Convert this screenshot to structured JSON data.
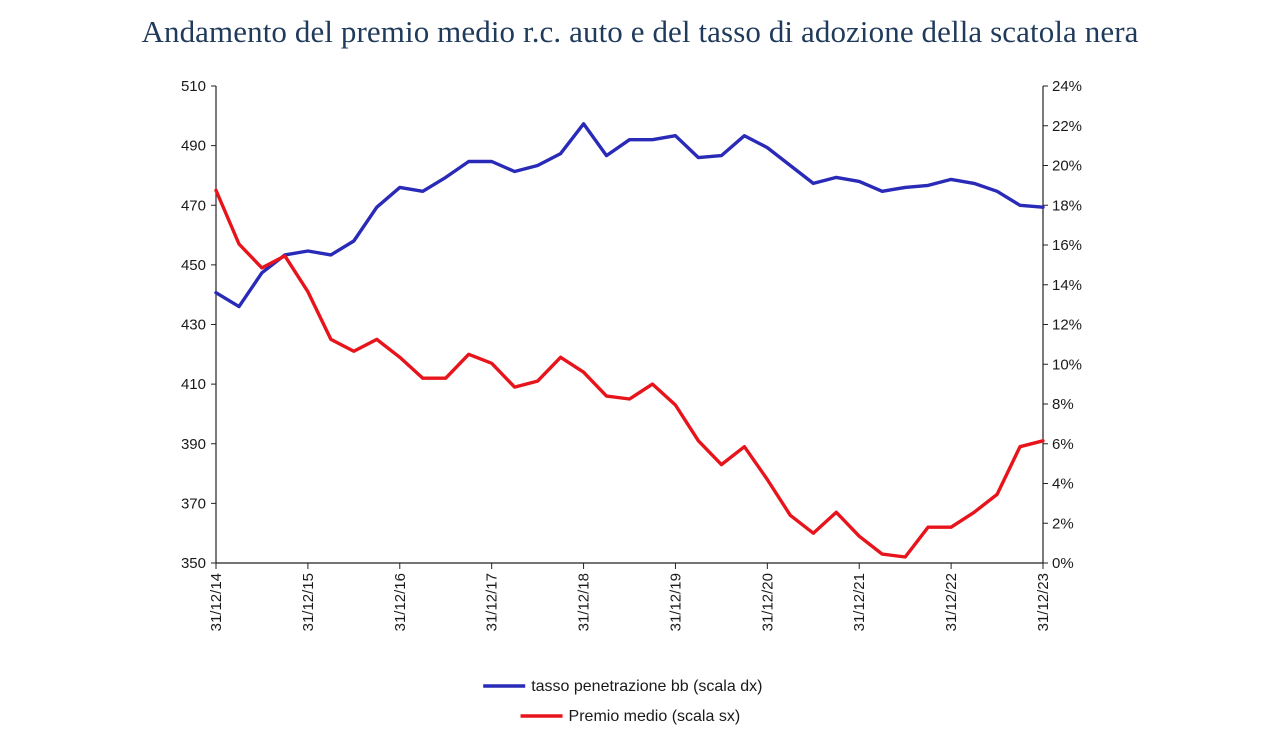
{
  "title": "Andamento del premio medio r.c. auto e del tasso di adozione della scatola nera",
  "chart_data": {
    "type": "line",
    "title": "Andamento del premio medio r.c. auto e del tasso di adozione della scatola nera",
    "x_ticks": [
      "31/12/14",
      "31/12/15",
      "31/12/16",
      "31/12/17",
      "31/12/18",
      "31/12/19",
      "31/12/20",
      "31/12/21",
      "31/12/22",
      "31/12/23"
    ],
    "x_range": [
      0,
      36
    ],
    "left_axis": {
      "ylim": [
        350,
        510
      ],
      "ticks": [
        "350",
        "370",
        "390",
        "410",
        "430",
        "450",
        "470",
        "490",
        "510"
      ]
    },
    "right_axis": {
      "ylim": [
        0,
        24
      ],
      "unit": "%",
      "ticks": [
        "0%",
        "2%",
        "4%",
        "6%",
        "8%",
        "10%",
        "12%",
        "14%",
        "16%",
        "18%",
        "20%",
        "22%",
        "24%"
      ]
    },
    "grid": false,
    "legend_position": "bottom",
    "series": [
      {
        "name": "tasso penetrazione bb (scala dx)",
        "axis": "right",
        "color": "#2a2ab8",
        "x": [
          0,
          1,
          2,
          3,
          4,
          5,
          6,
          7,
          8,
          9,
          10,
          11,
          12,
          13,
          14,
          15,
          16,
          17,
          18,
          19,
          20,
          21,
          22,
          23,
          24,
          25,
          26,
          27,
          28,
          29,
          30,
          31,
          32,
          33,
          34,
          35,
          36
        ],
        "values": [
          13.6,
          12.9,
          14.6,
          15.5,
          15.7,
          15.5,
          16.2,
          17.9,
          18.9,
          18.7,
          19.4,
          20.2,
          20.2,
          19.7,
          20.0,
          20.6,
          22.1,
          20.5,
          21.3,
          21.3,
          21.5,
          20.4,
          20.5,
          21.5,
          20.9,
          20.0,
          19.1,
          19.4,
          19.2,
          18.7,
          18.9,
          19.0,
          19.3,
          19.1,
          18.7,
          18.0,
          17.9
        ]
      },
      {
        "name": "Premio medio (scala sx)",
        "axis": "left",
        "color": "#e8141c",
        "x": [
          0,
          1,
          2,
          3,
          4,
          5,
          6,
          7,
          8,
          9,
          10,
          11,
          12,
          13,
          14,
          15,
          16,
          17,
          18,
          19,
          20,
          21,
          22,
          23,
          24,
          25,
          26,
          27,
          28,
          29,
          30,
          31,
          32,
          33,
          34,
          35,
          36
        ],
        "values": [
          475,
          457,
          449,
          453,
          441,
          425,
          421,
          425,
          419,
          412,
          412,
          420,
          417,
          409,
          411,
          419,
          414,
          406,
          405,
          410,
          403,
          391,
          383,
          389,
          378,
          366,
          360,
          367,
          359,
          353,
          352,
          362,
          362,
          367,
          373,
          389,
          391
        ]
      }
    ]
  }
}
